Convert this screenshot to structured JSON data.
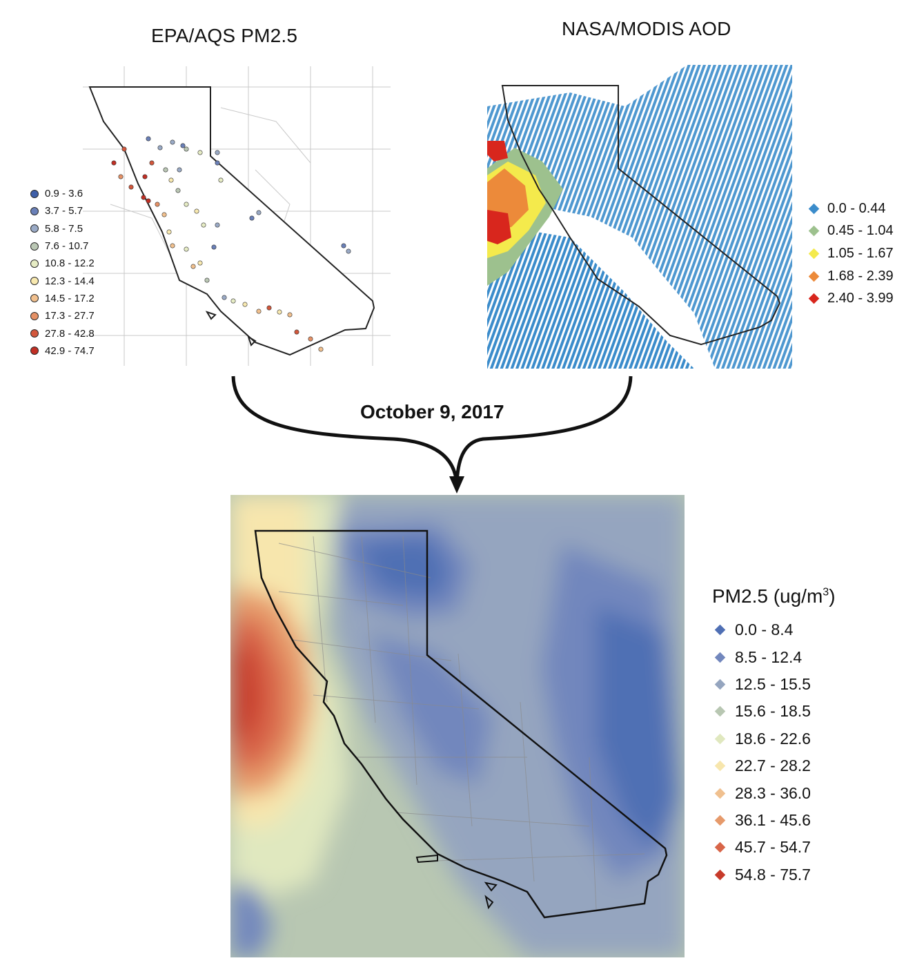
{
  "epa": {
    "title": "EPA/AQS PM2.5",
    "legend": [
      {
        "label": "0.9 - 3.6",
        "color": "#3e5fa8"
      },
      {
        "label": "3.7 - 5.7",
        "color": "#6a80b8"
      },
      {
        "label": "5.8 - 7.5",
        "color": "#9aaac6"
      },
      {
        "label": "7.6 - 10.7",
        "color": "#bac7b4"
      },
      {
        "label": "10.8 - 12.2",
        "color": "#e6ecc4"
      },
      {
        "label": "12.3 - 14.4",
        "color": "#f8e9b0"
      },
      {
        "label": "14.5 - 17.2",
        "color": "#f1c08e"
      },
      {
        "label": "17.3 - 27.7",
        "color": "#e59166"
      },
      {
        "label": "27.8 - 42.8",
        "color": "#d2573c"
      },
      {
        "label": "42.9 - 74.7",
        "color": "#c12f24"
      }
    ]
  },
  "modis": {
    "title": "NASA/MODIS AOD",
    "legend": [
      {
        "label": "0.0 - 0.44",
        "color": "#3b8ccb"
      },
      {
        "label": "0.45 - 1.04",
        "color": "#9dc18e"
      },
      {
        "label": "1.05 - 1.67",
        "color": "#f4ea4c"
      },
      {
        "label": "1.68 - 2.39",
        "color": "#ec8a3a"
      },
      {
        "label": "2.40 - 3.99",
        "color": "#d8261d"
      }
    ]
  },
  "date_label": "October 9, 2017",
  "result": {
    "legend_title": "PM2.5 (ug/m",
    "legend_title_sup": "3",
    "legend_title_end": ")",
    "legend": [
      {
        "label": "0.0 - 8.4",
        "color": "#4f6fb4"
      },
      {
        "label": "8.5 - 12.4",
        "color": "#7287bd"
      },
      {
        "label": "12.5 - 15.5",
        "color": "#95a5bf"
      },
      {
        "label": "15.6 - 18.5",
        "color": "#b8c7b2"
      },
      {
        "label": "18.6 - 22.6",
        "color": "#e0e8bf"
      },
      {
        "label": "22.7 - 28.2",
        "color": "#f7e6ad"
      },
      {
        "label": "28.3 - 36.0",
        "color": "#f0c08f"
      },
      {
        "label": "36.1 - 45.6",
        "color": "#e69a6b"
      },
      {
        "label": "45.7 - 54.7",
        "color": "#d86548"
      },
      {
        "label": "54.8 - 75.7",
        "color": "#c73a2a"
      }
    ]
  }
}
